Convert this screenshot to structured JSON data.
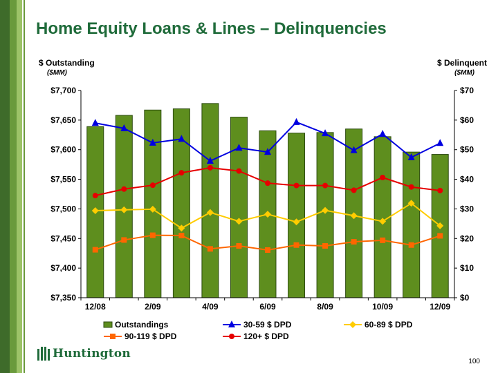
{
  "slide": {
    "title": "Home Equity Loans & Lines – Delinquencies",
    "left_axis_title": "$ Outstanding",
    "left_axis_unit": "($MM)",
    "right_axis_title": "$ Delinquent",
    "right_axis_unit": "($MM)",
    "logo_text": "Huntington",
    "page_number": "100"
  },
  "colors": {
    "title": "#1f6b3a",
    "bars": "#5e8e1e",
    "bars_border": "#2c4a10",
    "dpd_30_59": "#0000e0",
    "dpd_60_89": "#ffcc00",
    "dpd_90_119": "#ff6600",
    "dpd_120_plus": "#e60000"
  },
  "chart_data": {
    "type": "bar+line",
    "categories": [
      "12/08",
      "1/09",
      "2/09",
      "3/09",
      "4/09",
      "5/09",
      "6/09",
      "7/09",
      "8/09",
      "9/09",
      "10/09",
      "11/09",
      "12/09"
    ],
    "x_tick_labels": [
      "12/08",
      "",
      "2/09",
      "",
      "4/09",
      "",
      "6/09",
      "",
      "8/09",
      "",
      "10/09",
      "",
      "12/09"
    ],
    "left_axis": {
      "min": 7350,
      "max": 7700,
      "step": 50,
      "tick_labels": [
        "$7,350",
        "$7,400",
        "$7,450",
        "$7,500",
        "$7,550",
        "$7,600",
        "$7,650",
        "$7,700"
      ]
    },
    "right_axis": {
      "min": 0,
      "max": 70,
      "step": 10,
      "tick_labels": [
        "$0",
        "$10",
        "$20",
        "$30",
        "$40",
        "$50",
        "$60",
        "$70"
      ]
    },
    "bars": {
      "name": "Outstandings",
      "axis": "left",
      "values": [
        7639,
        7658,
        7667,
        7669,
        7678,
        7655,
        7632,
        7628,
        7629,
        7635,
        7622,
        7596,
        7592
      ]
    },
    "lines": [
      {
        "name": "30-59 $ DPD",
        "axis": "right",
        "marker": "triangle",
        "color": "#0000e0",
        "values": [
          59.0,
          57.2,
          52.3,
          53.6,
          46.2,
          50.6,
          49.2,
          59.3,
          55.5,
          49.8,
          55.3,
          47.4,
          52.2
        ]
      },
      {
        "name": "60-89 $ DPD",
        "axis": "right",
        "marker": "diamond",
        "color": "#ffcc00",
        "values": [
          29.4,
          29.7,
          29.9,
          23.5,
          28.8,
          25.8,
          28.2,
          25.6,
          29.5,
          27.7,
          25.8,
          31.9,
          24.3
        ]
      },
      {
        "name": "90-119 $ DPD",
        "axis": "right",
        "marker": "square",
        "color": "#ff6600",
        "values": [
          16.2,
          19.5,
          21.1,
          21.0,
          16.5,
          17.5,
          16.1,
          17.8,
          17.5,
          18.9,
          19.4,
          17.8,
          20.9
        ]
      },
      {
        "name": "120+ $ DPD",
        "axis": "right",
        "marker": "circle",
        "color": "#e60000",
        "values": [
          34.5,
          36.7,
          38.0,
          42.2,
          43.9,
          42.8,
          38.7,
          37.9,
          37.9,
          36.3,
          40.6,
          37.4,
          36.2
        ]
      }
    ],
    "legend": {
      "placement": "bottom",
      "entries": [
        "Outstandings",
        "30-59 $ DPD",
        "60-89 $ DPD",
        "90-119 $ DPD",
        "120+ $ DPD"
      ]
    },
    "grid": false
  }
}
